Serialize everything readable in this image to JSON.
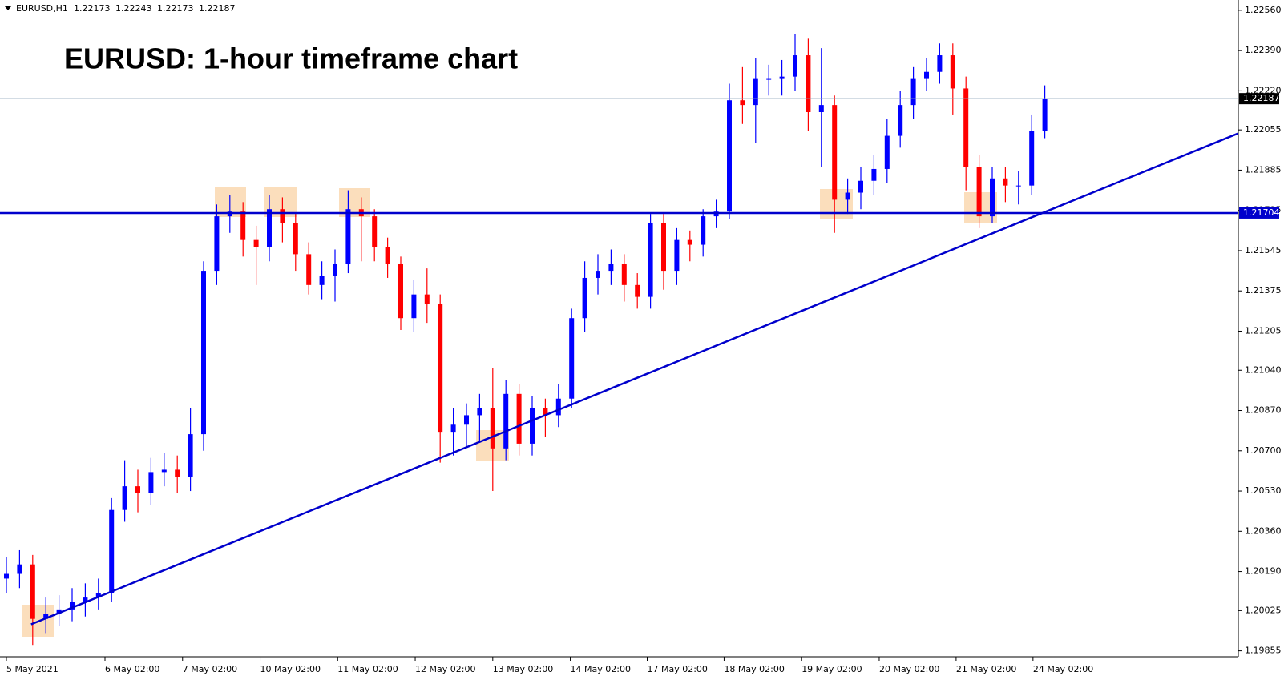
{
  "chart_data": {
    "type": "candlestick",
    "title": "EURUSD: 1-hour timeframe chart",
    "symbol": "EURUSD,H1",
    "header_ohlc": [
      1.22173,
      1.22243,
      1.22173,
      1.22187
    ],
    "up_color": "#0000ff",
    "down_color": "#ff0000",
    "open": [
      1.2016,
      1.2018,
      1.2022,
      1.1999,
      1.2001,
      1.2003,
      1.2006,
      1.2008,
      1.201,
      1.2045,
      1.2055,
      1.2052,
      1.2061,
      1.2062,
      1.2059,
      1.2077,
      1.2146,
      1.2169,
      1.2171,
      1.2159,
      1.2156,
      1.2172,
      1.2166,
      1.2153,
      1.214,
      1.2144,
      1.2149,
      1.2172,
      1.2169,
      1.2156,
      1.2149,
      1.2126,
      1.2136,
      1.2132,
      1.2078,
      1.2081,
      1.2085,
      1.2088,
      1.2071,
      1.2094,
      1.2073,
      1.2088,
      1.2085,
      1.2092,
      1.2126,
      1.2143,
      1.2146,
      1.2149,
      1.214,
      1.2135,
      1.2166,
      1.2146,
      1.2159,
      1.2157,
      1.2169,
      1.2171,
      1.2218,
      1.2216,
      1.2227,
      1.2227,
      1.2228,
      1.2237,
      1.2213,
      1.2216,
      1.2176,
      1.2179,
      1.2184,
      1.2189,
      1.2203,
      1.2216,
      1.2227,
      1.223,
      1.2237,
      1.2223,
      1.219,
      1.2169,
      1.2185,
      1.2182,
      1.2182,
      1.2205
    ],
    "high": [
      1.2025,
      1.2028,
      1.2026,
      1.2008,
      1.2009,
      1.2012,
      1.2014,
      1.2016,
      1.205,
      1.2066,
      1.2062,
      1.2067,
      1.2069,
      1.2068,
      1.2088,
      1.215,
      1.2174,
      1.2178,
      1.2175,
      1.2165,
      1.2178,
      1.2177,
      1.217,
      1.2158,
      1.215,
      1.2155,
      1.218,
      1.2177,
      1.2172,
      1.216,
      1.2152,
      1.2142,
      1.2147,
      1.2136,
      1.2088,
      1.209,
      1.2094,
      1.2105,
      1.21,
      1.2098,
      1.2093,
      1.2092,
      1.2098,
      1.213,
      1.215,
      1.2153,
      1.2155,
      1.2153,
      1.2145,
      1.217,
      1.217,
      1.2164,
      1.2163,
      1.2172,
      1.2176,
      1.2225,
      1.2232,
      1.2236,
      1.2233,
      1.2235,
      1.2246,
      1.2244,
      1.224,
      1.222,
      1.2185,
      1.219,
      1.2195,
      1.221,
      1.2222,
      1.2232,
      1.2236,
      1.2242,
      1.2242,
      1.2228,
      1.2195,
      1.219,
      1.219,
      1.2188,
      1.2212,
      1.22243
    ],
    "low": [
      1.201,
      1.2012,
      1.1988,
      1.1993,
      1.1996,
      1.1998,
      1.2,
      1.2003,
      1.2006,
      1.204,
      1.2044,
      1.2047,
      1.2055,
      1.2052,
      1.2053,
      1.207,
      1.214,
      1.2162,
      1.2152,
      1.214,
      1.215,
      1.2158,
      1.2146,
      1.2136,
      1.2134,
      1.2133,
      1.2145,
      1.215,
      1.215,
      1.2143,
      1.2121,
      1.212,
      1.2124,
      1.2065,
      1.2068,
      1.2072,
      1.2074,
      1.2053,
      1.2066,
      1.2068,
      1.2068,
      1.2076,
      1.208,
      1.2088,
      1.212,
      1.2136,
      1.214,
      1.2133,
      1.213,
      1.213,
      1.2138,
      1.214,
      1.215,
      1.2152,
      1.2164,
      1.2168,
      1.2208,
      1.22,
      1.222,
      1.222,
      1.2222,
      1.2205,
      1.219,
      1.2162,
      1.217,
      1.2172,
      1.2178,
      1.2183,
      1.2198,
      1.221,
      1.2222,
      1.2225,
      1.2212,
      1.218,
      1.2164,
      1.2166,
      1.2175,
      1.2174,
      1.2178,
      1.2202
    ],
    "close": [
      1.2018,
      1.2022,
      1.1999,
      1.2001,
      1.2003,
      1.2006,
      1.2008,
      1.201,
      1.2045,
      1.2055,
      1.2052,
      1.2061,
      1.2062,
      1.2059,
      1.2077,
      1.2146,
      1.2169,
      1.2171,
      1.2159,
      1.2156,
      1.2172,
      1.2166,
      1.2153,
      1.214,
      1.2144,
      1.2149,
      1.2172,
      1.2169,
      1.2156,
      1.2149,
      1.2126,
      1.2136,
      1.2132,
      1.2078,
      1.2081,
      1.2085,
      1.2088,
      1.2071,
      1.2094,
      1.2073,
      1.2088,
      1.2085,
      1.2092,
      1.2126,
      1.2143,
      1.2146,
      1.2149,
      1.214,
      1.2135,
      1.2166,
      1.2146,
      1.2159,
      1.2157,
      1.2169,
      1.2171,
      1.2218,
      1.2216,
      1.2227,
      1.2227,
      1.2228,
      1.2237,
      1.2213,
      1.2216,
      1.2176,
      1.2179,
      1.2184,
      1.2189,
      1.2203,
      1.2216,
      1.2227,
      1.223,
      1.2237,
      1.2223,
      1.219,
      1.2169,
      1.2185,
      1.2182,
      1.2182,
      1.2205,
      1.22187
    ],
    "ylim": [
      1.1983,
      1.2259
    ],
    "yticks": [
      {
        "value": 1.2256,
        "label": "1.22560"
      },
      {
        "value": 1.2239,
        "label": "1.22390"
      },
      {
        "value": 1.2222,
        "label": "1.22220"
      },
      {
        "value": 1.22055,
        "label": "1.22055"
      },
      {
        "value": 1.21885,
        "label": "1.21885"
      },
      {
        "value": 1.21715,
        "label": "1.21715"
      },
      {
        "value": 1.21545,
        "label": "1.21545"
      },
      {
        "value": 1.21375,
        "label": "1.21375"
      },
      {
        "value": 1.21205,
        "label": "1.21205"
      },
      {
        "value": 1.2104,
        "label": "1.21040"
      },
      {
        "value": 1.2087,
        "label": "1.20870"
      },
      {
        "value": 1.207,
        "label": "1.20700"
      },
      {
        "value": 1.2053,
        "label": "1.20530"
      },
      {
        "value": 1.2036,
        "label": "1.20360"
      },
      {
        "value": 1.2019,
        "label": "1.20190"
      },
      {
        "value": 1.20025,
        "label": "1.20025"
      },
      {
        "value": 1.19855,
        "label": "1.19855"
      }
    ],
    "xticks": [
      {
        "value": 0,
        "label": "5 May 2021"
      },
      {
        "value": 7.5,
        "label": "6 May 02:00"
      },
      {
        "value": 13.4,
        "label": "7 May 02:00"
      },
      {
        "value": 19.3,
        "label": "10 May 02:00"
      },
      {
        "value": 25.2,
        "label": "11 May 02:00"
      },
      {
        "value": 31.1,
        "label": "12 May 02:00"
      },
      {
        "value": 37,
        "label": "13 May 02:00"
      },
      {
        "value": 42.9,
        "label": "14 May 02:00"
      },
      {
        "value": 48.75,
        "label": "17 May 02:00"
      },
      {
        "value": 54.6,
        "label": "18 May 02:00"
      },
      {
        "value": 60.5,
        "label": "19 May 02:00"
      },
      {
        "value": 66.4,
        "label": "20 May 02:00"
      },
      {
        "value": 72.25,
        "label": "21 May 02:00"
      },
      {
        "value": 78.1,
        "label": "24 May 02:00"
      }
    ],
    "support_level": 1.21704,
    "level_color": "#0000cc",
    "current_price": 1.22187,
    "trendline": {
      "x": [
        1.875,
        93.7
      ],
      "values": [
        1.19967,
        1.2204
      ]
    }
  }
}
